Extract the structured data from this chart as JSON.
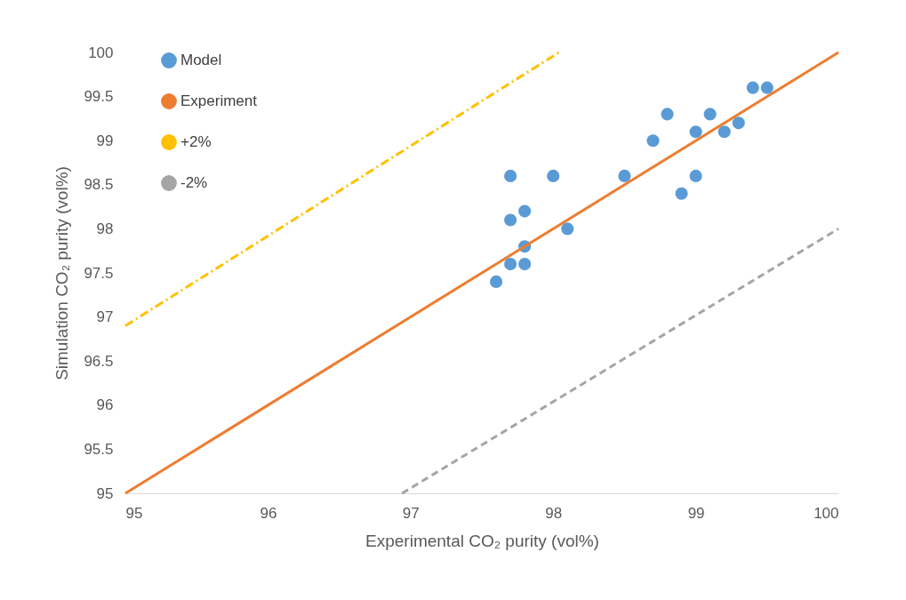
{
  "chart_data": {
    "type": "scatter",
    "xlabel": "Experimental CO₂ purity (vol%)",
    "ylabel": "Simulation CO₂ purity (vol%)",
    "xlim": [
      95,
      100
    ],
    "xticks": [
      95,
      96,
      97,
      98,
      99,
      100
    ],
    "ylim": [
      95,
      100
    ],
    "yticks": [
      95,
      95.5,
      96,
      96.5,
      97,
      97.5,
      98,
      98.5,
      99,
      99.5,
      100
    ],
    "grid": false,
    "legend": "top left",
    "series": [
      {
        "name": "Model",
        "marker": "circle",
        "color": "#5b9bd5",
        "x": [
          97.6,
          97.7,
          97.7,
          97.7,
          97.8,
          97.8,
          97.8,
          98.0,
          98.1,
          98.5,
          98.7,
          98.8,
          98.9,
          99.0,
          99.0,
          99.1,
          99.2,
          99.3,
          99.4,
          99.5
        ],
        "values": [
          97.4,
          97.6,
          98.1,
          98.6,
          98.2,
          97.8,
          97.6,
          98.6,
          98.0,
          98.6,
          99.0,
          99.3,
          98.4,
          99.1,
          98.6,
          99.3,
          99.1,
          99.2,
          99.6,
          99.6
        ]
      },
      {
        "name": "Experiment",
        "type": "line",
        "color": "#ed7d31",
        "line_style": "solid",
        "x": [
          95,
          100
        ],
        "values": [
          95,
          100
        ]
      },
      {
        "name": "+2%",
        "type": "line",
        "color": "#ffc000",
        "line_style": "dashdot",
        "x": [
          95,
          98.04
        ],
        "values": [
          96.9,
          100
        ]
      },
      {
        "name": "-2%",
        "type": "line",
        "color": "#a5a5a5",
        "line_style": "dashed",
        "x": [
          96.94,
          100
        ],
        "values": [
          95,
          98
        ]
      }
    ]
  }
}
